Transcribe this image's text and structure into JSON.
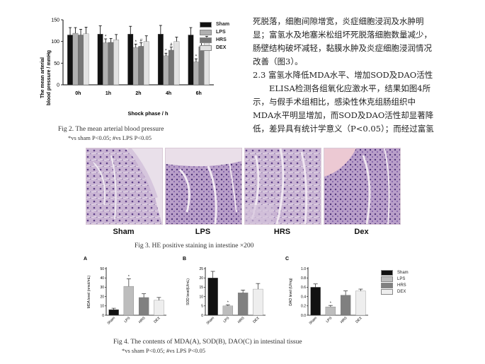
{
  "fig2": {
    "ylabel_line1": "The mean arterial",
    "ylabel_line2": "blood pressure / mmHg",
    "xlabel": "Shock phase / h",
    "caption_line1": "Fig 2.  The mean arterial blood pressure",
    "caption_line2": "*vs sham  P<0.05; #vs LPS  P<0.05",
    "legend": [
      {
        "name": "Sham",
        "color": "#111111"
      },
      {
        "name": "LPS",
        "color": "#b0b0b0"
      },
      {
        "name": "HRS",
        "color": "#777777"
      },
      {
        "name": "DEX",
        "color": "#e2e2e2"
      }
    ]
  },
  "chart_data": [
    {
      "type": "bar",
      "categories": [
        "0h",
        "1h",
        "2h",
        "4h",
        "6h"
      ],
      "series": [
        {
          "name": "Sham",
          "values": [
            115,
            117,
            117,
            117,
            115
          ],
          "errors": [
            17,
            19,
            18,
            20,
            17
          ]
        },
        {
          "name": "LPS",
          "values": [
            119,
            97,
            86,
            67,
            53
          ],
          "errors": [
            13,
            9,
            8,
            6,
            7
          ]
        },
        {
          "name": "HRS",
          "values": [
            115,
            98,
            89,
            80,
            88
          ],
          "errors": [
            13,
            9,
            8,
            7,
            9
          ]
        },
        {
          "name": "DEX",
          "values": [
            118,
            104,
            100,
            100,
            103
          ],
          "errors": [
            15,
            12,
            13,
            10,
            9
          ]
        }
      ],
      "markers": [
        [
          "",
          "",
          "",
          "",
          ""
        ],
        [
          "",
          "*",
          "*",
          "*",
          "*"
        ],
        [
          "",
          "",
          "#",
          "#",
          "#"
        ],
        [
          "",
          "",
          "",
          "",
          ""
        ]
      ],
      "ylim": [
        0,
        150
      ],
      "yticks": [
        0,
        50,
        100,
        150
      ],
      "xlabel": "Shock phase / h",
      "ylabel": "The mean arterial blood pressure / mmHg"
    },
    {
      "type": "bar",
      "panel": "A",
      "categories": [
        "Sham",
        "LPS",
        "HRS",
        "DEX"
      ],
      "values": [
        6,
        31,
        19,
        16
      ],
      "errors": [
        1.5,
        8,
        4,
        3
      ],
      "markers": [
        "",
        "*",
        "",
        ""
      ],
      "ylim": [
        0,
        50
      ],
      "yticks": [
        0,
        10,
        20,
        30,
        40,
        50
      ],
      "ylabel": "MDA level (nmol/mL)"
    },
    {
      "type": "bar",
      "panel": "B",
      "categories": [
        "Sham",
        "LPS",
        "HRS",
        "DEX"
      ],
      "values": [
        20,
        5,
        12,
        14
      ],
      "errors": [
        3.5,
        0.6,
        1.5,
        3
      ],
      "markers": [
        "",
        "*",
        "",
        ""
      ],
      "ylim": [
        0,
        25
      ],
      "yticks": [
        0,
        5,
        10,
        15,
        20,
        25
      ],
      "ylabel": "SOD level(U/mL)"
    },
    {
      "type": "bar",
      "panel": "C",
      "categories": [
        "Sham",
        "LPS",
        "HRS",
        "DEX"
      ],
      "values": [
        0.6,
        0.18,
        0.43,
        0.52
      ],
      "errors": [
        0.07,
        0.03,
        0.09,
        0.04
      ],
      "markers": [
        "",
        "*",
        "",
        ""
      ],
      "ylim": [
        0,
        1.0
      ],
      "yticks": [
        0.0,
        0.2,
        0.4,
        0.6,
        0.8,
        1.0
      ],
      "ylabel": "DAO level (U/mg)"
    }
  ],
  "fig3": {
    "labels": [
      "Sham",
      "LPS",
      "HRS",
      "Dex"
    ],
    "caption": "Fig 3.   HE positive staining in intestine ×200"
  },
  "fig4": {
    "legend": [
      {
        "name": "Sham",
        "color": "#111111"
      },
      {
        "name": "LPS",
        "color": "#bdbdbd"
      },
      {
        "name": "HRS",
        "color": "#808080"
      },
      {
        "name": "DEX",
        "color": "#eeeeee"
      }
    ],
    "caption_line1": "Fig 4.  The  contents of MDA(A), SOD(B), DAO(C) in intestinal tissue",
    "caption_line2": "*vs sham  P<0.05; #vs LPS  P<0.05"
  },
  "text": {
    "p1_l1": "死脱落，细胞间隙增宽，炎症细胞浸润及水肿明",
    "p1_l2": "显；富氢水及地塞米松组坏死脱落细胞数量减少，",
    "p1_l3": "肠壁结构破坏减轻，黏膜水肿及炎症细胞浸润情况",
    "p1_l4": "改善（图3）。",
    "heading": "2.3 富氢水降低MDA水平、增加SOD及DAO活性",
    "p2_l1": "ELISA检测各组氧化应激水平，结果如图4所",
    "p2_l2": "示，与假手术组相比，感染性休克组肠组织中",
    "p2_l3": "MDA水平明显增加，而SOD及DAO活性却显著降",
    "p2_l4": "低，差异具有统计学意义（P<0.05）；而经过富氢"
  }
}
